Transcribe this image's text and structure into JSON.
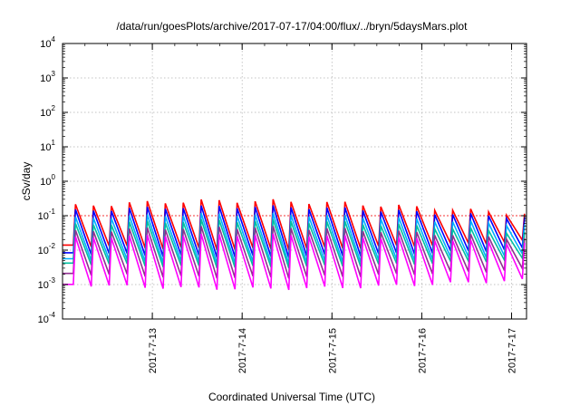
{
  "chart_data": {
    "type": "line",
    "title": "/data/run/goesPlots/archive/2017-07-17/04:00/flux/../bryn/5daysMars.plot",
    "xlabel": "Coordinated Universal Time (UTC)",
    "ylabel": "cSv/day",
    "yscale": "log",
    "ylim": [
      0.0001,
      10000
    ],
    "y_ticks": [
      {
        "base": "10",
        "exp": "-4",
        "value": 0.0001
      },
      {
        "base": "10",
        "exp": "-3",
        "value": 0.001
      },
      {
        "base": "10",
        "exp": "-2",
        "value": 0.01
      },
      {
        "base": "10",
        "exp": "-1",
        "value": 0.1
      },
      {
        "base": "10",
        "exp": "0",
        "value": 1
      },
      {
        "base": "10",
        "exp": "1",
        "value": 10
      },
      {
        "base": "10",
        "exp": "2",
        "value": 100
      },
      {
        "base": "10",
        "exp": "3",
        "value": 1000
      },
      {
        "base": "10",
        "exp": "4",
        "value": 10000
      }
    ],
    "xlim": [
      "2017-07-12 00:00",
      "2017-07-17 04:00"
    ],
    "x_ticks": [
      "2017-7-13",
      "2017-7-14",
      "2017-7-15",
      "2017-7-16",
      "2017-7-17"
    ],
    "grid": true,
    "reference_line": {
      "value": 0.1,
      "color": "#ff0000"
    },
    "pattern": "sawtooth, about 5 cycles per day; each cycle rises sharply to a peak then decays",
    "series": [
      {
        "color": "#ff0000",
        "peak_min": 0.1,
        "peak_max": 0.3,
        "low_min": 0.01,
        "low_max": 0.02
      },
      {
        "color": "#0000ff",
        "peak_min": 0.08,
        "peak_max": 0.2,
        "low_min": 0.006,
        "low_max": 0.012
      },
      {
        "color": "#00b0ff",
        "peak_min": 0.05,
        "peak_max": 0.12,
        "low_min": 0.004,
        "low_max": 0.008
      },
      {
        "color": "#00c0a0",
        "peak_min": 0.03,
        "peak_max": 0.08,
        "low_min": 0.003,
        "low_max": 0.006
      },
      {
        "color": "#903090",
        "peak_min": 0.02,
        "peak_max": 0.05,
        "low_min": 0.0015,
        "low_max": 0.003
      },
      {
        "color": "#ff00ff",
        "peak_min": 0.015,
        "peak_max": 0.03,
        "low_min": 0.0007,
        "low_max": 0.0015
      }
    ]
  }
}
